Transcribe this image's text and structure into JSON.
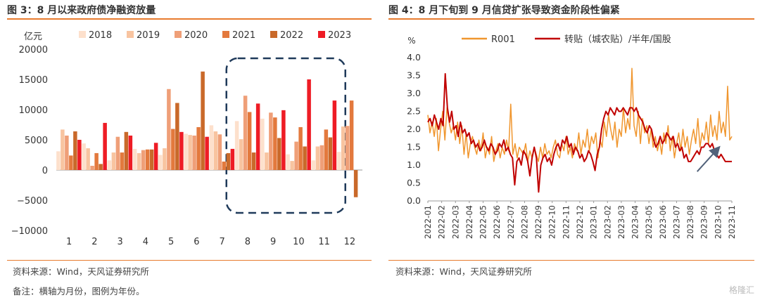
{
  "left_panel": {
    "title": "图 3：8 月以来政府债净融资放量",
    "source": "资料来源：Wind，天风证券研究所",
    "note": "备注：横轴为月份，图例为年份。"
  },
  "right_panel": {
    "title": "图 4：8 月下旬到 9 月信贷扩张导致资金阶段性偏紧",
    "source": "资料来源：Wind，天风证券研究所"
  },
  "watermark": "格隆汇",
  "chart_data": [
    {
      "type": "bar",
      "ylabel": "亿元",
      "ylim": [
        -10000,
        20000
      ],
      "yticks": [
        -10000,
        -5000,
        0,
        5000,
        10000,
        15000,
        20000
      ],
      "categories": [
        "1",
        "2",
        "3",
        "4",
        "5",
        "6",
        "7",
        "8",
        "9",
        "10",
        "11",
        "12"
      ],
      "legend_position": "top",
      "highlight_box": {
        "from_category": "8",
        "to_category": "11",
        "style": "dashed",
        "color": "#1f3a5a"
      },
      "series": [
        {
          "name": "2018",
          "color": "#fde0cc",
          "values": [
            3100,
            4400,
            1600,
            3500,
            2500,
            6000,
            7400,
            8100,
            8500,
            2600,
            1600,
            3000
          ]
        },
        {
          "name": "2019",
          "color": "#f8c4a0",
          "values": [
            6700,
            3600,
            2900,
            2800,
            3600,
            5800,
            6400,
            5100,
            2900,
            1500,
            3900,
            7200
          ]
        },
        {
          "name": "2020",
          "color": "#ef9f78",
          "values": [
            5700,
            700,
            5500,
            3300,
            13400,
            5700,
            5900,
            12300,
            9500,
            4700,
            4100,
            7300
          ]
        },
        {
          "name": "2021",
          "color": "#e3793d",
          "values": [
            2400,
            2800,
            2900,
            3400,
            6800,
            7100,
            1400,
            9600,
            8700,
            7100,
            6700,
            11500
          ]
        },
        {
          "name": "2022",
          "color": "#c9692a",
          "values": [
            6400,
            1000,
            6300,
            3400,
            11100,
            16300,
            2800,
            2900,
            5300,
            3900,
            5400,
            -4500
          ]
        },
        {
          "name": "2023",
          "color": "#ee1c25",
          "values": [
            5000,
            7800,
            5700,
            4500,
            6300,
            5500,
            3500,
            11000,
            9900,
            15000,
            11500,
            null
          ]
        }
      ]
    },
    {
      "type": "line",
      "ylabel": "%",
      "ylim": [
        0.0,
        4.0
      ],
      "yticks": [
        "0.0",
        "0.5",
        "1.0",
        "1.5",
        "2.0",
        "2.5",
        "3.0",
        "3.5",
        "4.0"
      ],
      "x_ticks": [
        "2022-01",
        "2022-02",
        "2022-03",
        "2022-04",
        "2022-05",
        "2022-06",
        "2022-07",
        "2022-08",
        "2022-09",
        "2022-10",
        "2022-11",
        "2022-12",
        "2023-01",
        "2023-02",
        "2023-03",
        "2023-04",
        "2023-05",
        "2023-06",
        "2023-07",
        "2023-08",
        "2023-09",
        "2023-10",
        "2023-11"
      ],
      "legend_position": "top",
      "annotation": "upward arrow from 2023-09 to 2023-10",
      "series": [
        {
          "name": "R001",
          "color": "#f0962e",
          "values": [
            2.4,
            1.9,
            2.2,
            1.8,
            2.3,
            1.4,
            2.0,
            2.5,
            1.7,
            2.6,
            2.2,
            1.9,
            2.1,
            1.7,
            2.2,
            1.6,
            2.1,
            1.3,
            1.9,
            1.2,
            1.6,
            1.8,
            1.5,
            1.3,
            1.7,
            1.4,
            1.9,
            1.2,
            1.5,
            1.3,
            1.8,
            1.1,
            1.4,
            1.6,
            1.2,
            1.5,
            1.3,
            1.7,
            1.4,
            2.7,
            1.3,
            1.6,
            1.2,
            1.5,
            1.4,
            1.3,
            1.6,
            1.1,
            1.4,
            1.2,
            1.5,
            1.3,
            1.1,
            1.5,
            1.2,
            1.6,
            1.3,
            1.4,
            1.2,
            1.5,
            1.7,
            1.3,
            1.2,
            1.6,
            1.4,
            1.8,
            1.3,
            1.5,
            1.2,
            1.6,
            1.4,
            1.9,
            1.3,
            1.7,
            1.5,
            2.0,
            1.4,
            1.8,
            1.6,
            1.9,
            1.2,
            1.7,
            1.5,
            2.2,
            1.8,
            2.4,
            2.0,
            1.7,
            2.2,
            1.5,
            2.0,
            1.8,
            2.6,
            1.9,
            2.3,
            2.0,
            3.7,
            2.1,
            1.8,
            2.5,
            1.6,
            2.3,
            1.9,
            2.1,
            1.6,
            2.0,
            1.5,
            1.8,
            1.4,
            1.7,
            1.3,
            1.9,
            1.6,
            2.1,
            1.4,
            1.8,
            1.2,
            1.6,
            1.9,
            1.4,
            2.0,
            1.5,
            1.8,
            1.3,
            1.7,
            2.0,
            1.6,
            2.3,
            1.5,
            1.9,
            1.7,
            2.2,
            1.6,
            2.4,
            1.8,
            2.1,
            1.7,
            2.5,
            1.9,
            2.2,
            1.8,
            3.2,
            1.7,
            1.8
          ]
        },
        {
          "name": "转贴（城农贴）/半年/国股",
          "color": "#c00000",
          "values": [
            2.2,
            2.3,
            2.1,
            2.4,
            2.2,
            2.0,
            2.3,
            2.1,
            3.55,
            2.6,
            2.2,
            2.5,
            2.0,
            2.1,
            1.8,
            2.2,
            1.9,
            2.0,
            1.8,
            1.9,
            1.6,
            1.7,
            1.5,
            1.6,
            1.4,
            1.5,
            1.7,
            1.5,
            1.4,
            1.6,
            1.5,
            1.3,
            1.4,
            1.6,
            1.5,
            1.7,
            1.4,
            1.5,
            1.3,
            1.2,
            0.45,
            1.1,
            1.2,
            1.0,
            1.4,
            1.3,
            1.1,
            0.7,
            1.2,
            1.5,
            1.2,
            0.25,
            1.0,
            1.2,
            1.3,
            1.1,
            1.2,
            1.0,
            1.3,
            1.5,
            1.6,
            1.4,
            1.7,
            1.6,
            1.8,
            1.5,
            1.6,
            1.3,
            1.5,
            1.4,
            1.2,
            1.3,
            1.1,
            1.2,
            1.4,
            1.3,
            1.1,
            0.85,
            1.3,
            1.5,
            2.0,
            2.3,
            2.5,
            2.4,
            2.6,
            2.5,
            2.4,
            2.6,
            2.5,
            2.5,
            2.6,
            2.5,
            2.4,
            2.6,
            2.6,
            2.5,
            2.6,
            2.4,
            2.3,
            2.2,
            2.0,
            1.9,
            2.1,
            2.0,
            1.7,
            1.5,
            1.6,
            1.8,
            1.6,
            1.7,
            1.9,
            1.8,
            1.7,
            1.8,
            1.5,
            1.6,
            1.4,
            1.5,
            1.2,
            1.3,
            1.1,
            1.1,
            1.2,
            1.3,
            1.4,
            1.3,
            1.5,
            1.5,
            1.6,
            1.6,
            1.5,
            1.6,
            1.4,
            1.3,
            1.2,
            1.3,
            1.2,
            1.1,
            1.1,
            1.1,
            1.1
          ]
        }
      ]
    }
  ]
}
